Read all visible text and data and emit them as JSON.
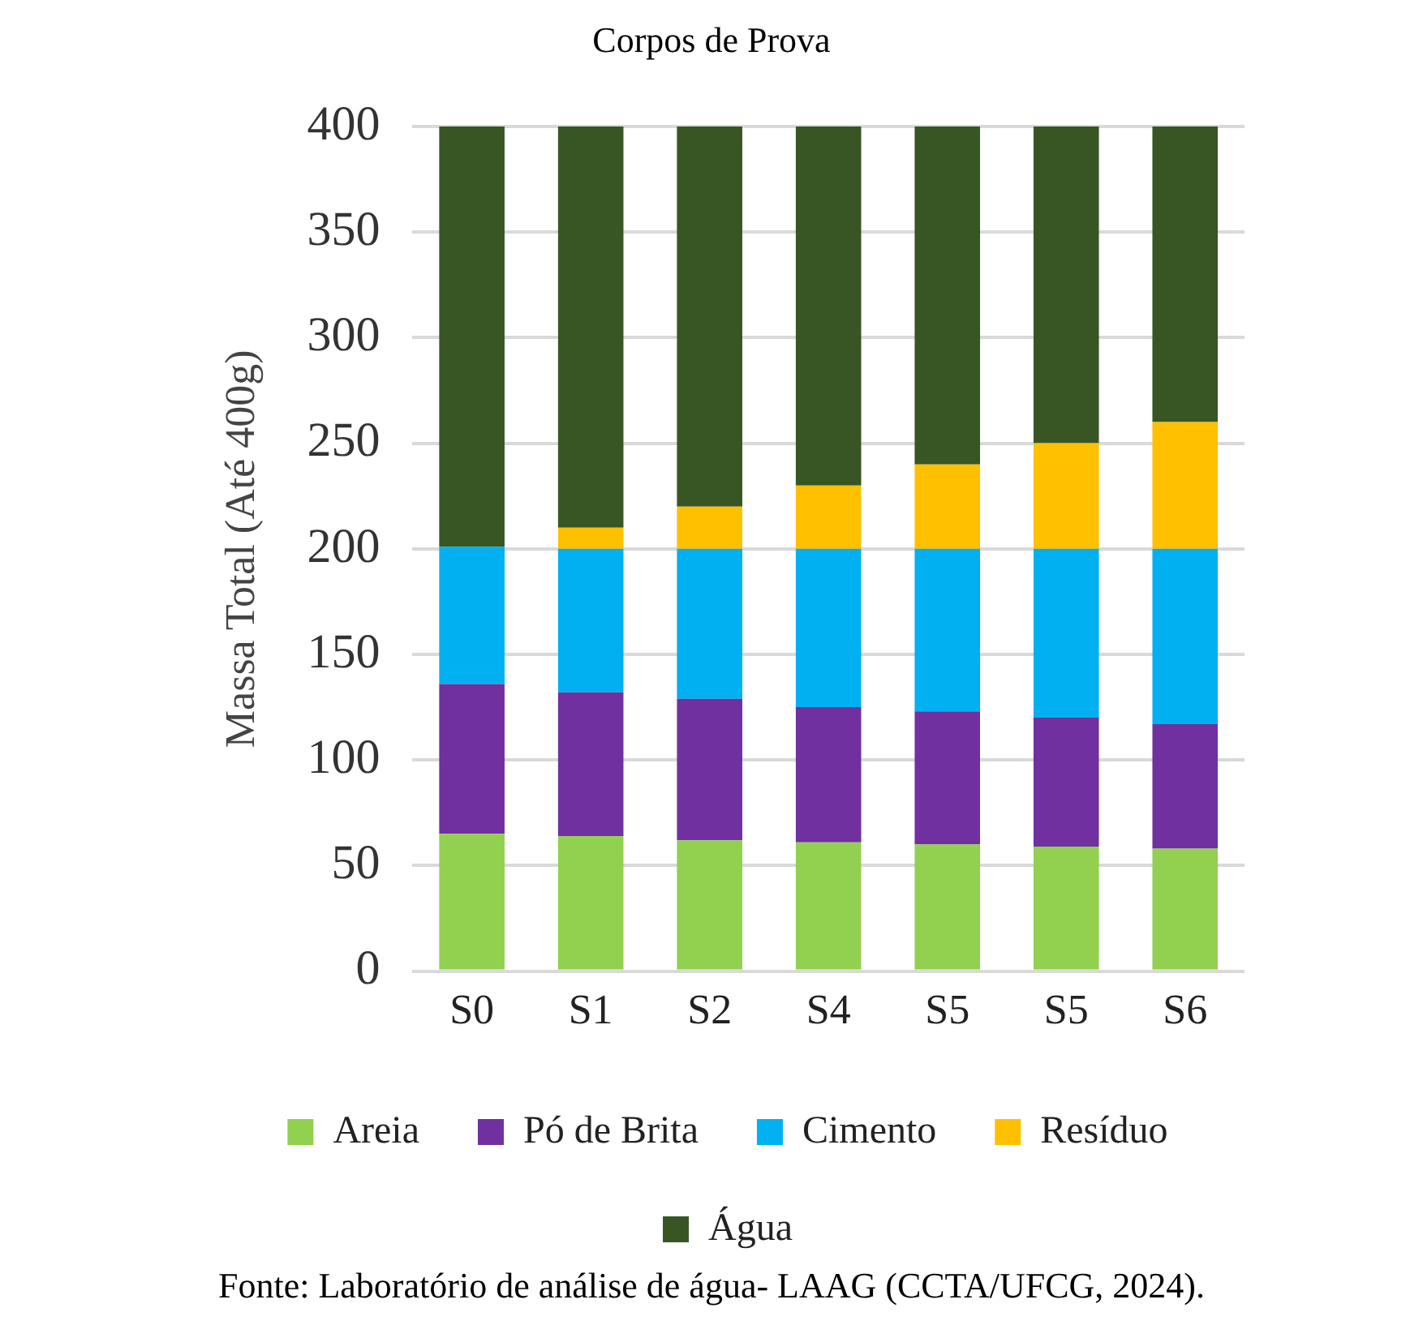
{
  "chart_data": {
    "type": "bar",
    "stacked": true,
    "title": "Corpos de Prova",
    "ylabel": "Massa Total (Até 400g)",
    "categories": [
      "S0",
      "S1",
      "S2",
      "S4",
      "S5",
      "S5",
      "S6"
    ],
    "series": [
      {
        "name": "Areia",
        "color": "#92d050",
        "values": [
          65,
          64,
          62,
          61,
          60,
          59,
          58
        ]
      },
      {
        "name": "Pó de Brita",
        "color": "#7030a0",
        "values": [
          71,
          68,
          67,
          64,
          63,
          61,
          59
        ]
      },
      {
        "name": "Cimento",
        "color": "#00b0f0",
        "values": [
          65,
          68,
          71,
          75,
          77,
          80,
          83
        ]
      },
      {
        "name": "Resíduo",
        "color": "#ffc000",
        "values": [
          0,
          10,
          20,
          30,
          40,
          50,
          60
        ]
      },
      {
        "name": "Água",
        "color": "#375623",
        "values": [
          199,
          190,
          180,
          170,
          160,
          150,
          140
        ]
      }
    ],
    "ylim": [
      0,
      400
    ],
    "yticks": [
      0,
      50,
      100,
      150,
      200,
      250,
      300,
      350,
      400
    ],
    "grid": "y",
    "legend": "bottom",
    "annotations": [
      "Fonte: Laboratório de análise de água- LAAG (CCTA/UFCG, 2024)."
    ]
  }
}
